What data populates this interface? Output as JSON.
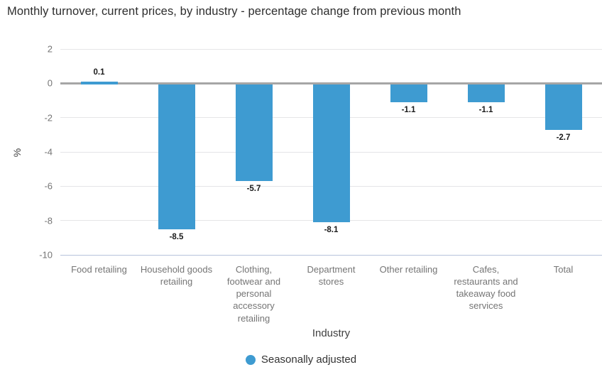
{
  "title": "Monthly turnover, current prices, by industry - percentage change from previous month",
  "chart_data": {
    "type": "bar",
    "title": "Monthly turnover, current prices, by industry - percentage change from previous month",
    "categories": [
      "Food retailing",
      "Household goods retailing",
      "Clothing, footwear and personal accessory retailing",
      "Department stores",
      "Other retailing",
      "Cafes, restaurants and takeaway food services",
      "Total"
    ],
    "series": [
      {
        "name": "Seasonally adjusted",
        "values": [
          0.1,
          -8.5,
          -5.7,
          -8.1,
          -1.1,
          -1.1,
          -2.7
        ]
      }
    ],
    "data_labels": [
      "0.1",
      "-8.5",
      "-5.7",
      "-8.1",
      "-1.1",
      "-1.1",
      "-2.7"
    ],
    "xlabel": "Industry",
    "ylabel": "%",
    "ylim": [
      -10,
      2
    ],
    "yticks": [
      2,
      0,
      -2,
      -4,
      -6,
      -8,
      -10
    ],
    "grid": true,
    "legend_position": "bottom",
    "colors": {
      "bar": "#3e9bd1",
      "zero_line": "#a6a6a6",
      "gridline": "#e5e5e7",
      "baseline": "#b6c3dc",
      "axis_text": "#757575",
      "title_text": "#2d2d2d",
      "value_label_text": "#1a1a1a"
    }
  }
}
